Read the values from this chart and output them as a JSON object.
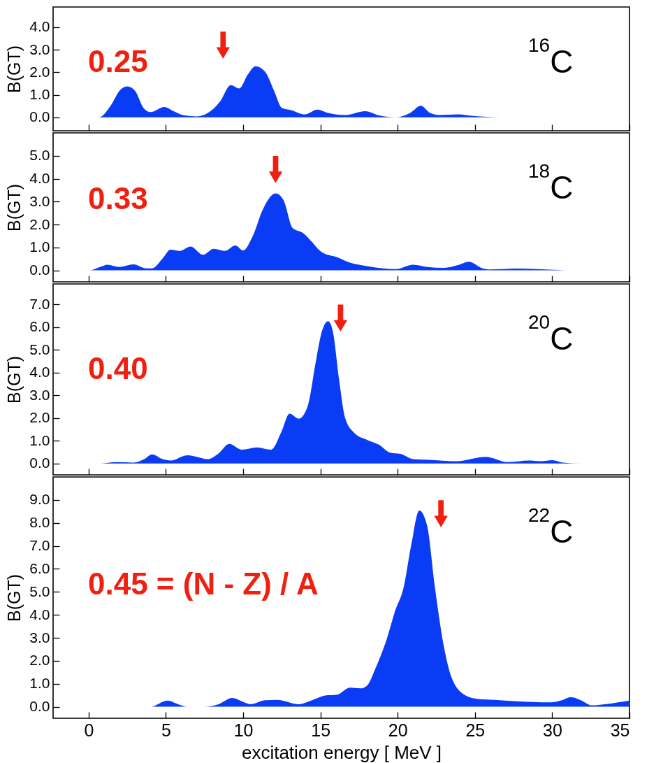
{
  "chart_data": [
    {
      "type": "area",
      "ylabel": "B(GT)",
      "tick_labels": "y",
      "x": [
        -2.3,
        0.66,
        1.5,
        2.0,
        2.5,
        3.0,
        3.55,
        4.0,
        4.9,
        5.5,
        6.2,
        7.0,
        7.8,
        8.5,
        9.2,
        9.75,
        10.3,
        10.8,
        11.4,
        12.0,
        12.5,
        13.1,
        14.0,
        14.8,
        15.5,
        16.6,
        17.9,
        18.8,
        19.9,
        20.8,
        21.5,
        22.1,
        22.7,
        23.9,
        24.9,
        26.6,
        35
      ],
      "series": [
        {
          "color": "#0a3cf5",
          "values": [
            0,
            0,
            0.6,
            1.18,
            1.37,
            1.18,
            0.42,
            0.23,
            0.46,
            0.27,
            0.08,
            0.04,
            0.23,
            0.7,
            1.43,
            1.28,
            1.9,
            2.27,
            2.04,
            1.18,
            0.42,
            0.32,
            0.13,
            0.34,
            0.19,
            0.1,
            0.27,
            0.08,
            0,
            0.19,
            0.51,
            0.19,
            0.1,
            0.13,
            0.06,
            0,
            0
          ]
        },
        {
          "type": "scatter",
          "color": "#f02010",
          "x": [
            8.7
          ],
          "values": [
            3.2
          ]
        }
      ],
      "xlim": [
        -2.3,
        35
      ],
      "xticks": [
        0,
        5,
        10,
        15,
        20,
        25,
        30,
        35
      ],
      "ylim": [
        -0.6,
        4.9
      ],
      "yticks": [
        {
          "value": 0,
          "label": "0.0"
        },
        {
          "value": 1,
          "label": "1.0"
        },
        {
          "value": 2,
          "label": "2.0"
        },
        {
          "value": 3,
          "label": "3.0"
        },
        {
          "value": 4,
          "label": "4.0"
        }
      ],
      "annotations": [
        "0.25",
        "$^{16}$C"
      ]
    },
    {
      "type": "area",
      "ylabel": "B(GT)",
      "tick_labels": "y",
      "x": [
        -2.3,
        0,
        0.9,
        1.2,
        2.0,
        2.9,
        3.7,
        4.1,
        4.8,
        5.3,
        5.9,
        6.6,
        7.4,
        8.1,
        8.8,
        9.5,
        10.0,
        10.6,
        11.3,
        12.1,
        12.6,
        13.2,
        13.9,
        14.4,
        15.1,
        16.1,
        16.9,
        18.0,
        19.9,
        21.0,
        21.9,
        23.0,
        23.9,
        24.6,
        25.5,
        26.0,
        27.7,
        30.4,
        31.2,
        35
      ],
      "series": [
        {
          "color": "#0a3cf5",
          "values": [
            0,
            0,
            0.19,
            0.25,
            0.15,
            0.26,
            0.09,
            0.09,
            0.53,
            0.9,
            0.85,
            1.04,
            0.68,
            0.94,
            0.85,
            1.09,
            0.87,
            1.47,
            2.7,
            3.36,
            3.08,
            1.85,
            1.62,
            1.28,
            0.79,
            0.57,
            0.34,
            0.19,
            0.06,
            0.25,
            0.15,
            0.11,
            0.23,
            0.38,
            0.09,
            0.04,
            0.08,
            0.02,
            0,
            0
          ]
        },
        {
          "type": "scatter",
          "color": "#f02010",
          "x": [
            12.1
          ],
          "values": [
            4.4
          ]
        }
      ],
      "xlim": [
        -2.3,
        35
      ],
      "xticks": [
        0,
        5,
        10,
        15,
        20,
        25,
        30,
        35
      ],
      "ylim": [
        -0.5,
        6.0
      ],
      "yticks": [
        {
          "value": 0,
          "label": "0.0"
        },
        {
          "value": 1,
          "label": "1.0"
        },
        {
          "value": 2,
          "label": "2.0"
        },
        {
          "value": 3,
          "label": "3.0"
        },
        {
          "value": 4,
          "label": "4.0"
        },
        {
          "value": 5,
          "label": "5.0"
        }
      ],
      "annotations": [
        "0.33",
        "$^{18}$C"
      ]
    },
    {
      "type": "area",
      "ylabel": "B(GT)",
      "tick_labels": "y",
      "x": [
        -2.3,
        0.7,
        1.8,
        2.9,
        3.6,
        4.1,
        4.8,
        5.3,
        6.4,
        7.0,
        7.7,
        8.4,
        9.1,
        9.9,
        10.9,
        11.8,
        12.5,
        13.0,
        13.6,
        14.2,
        14.7,
        15.1,
        15.5,
        15.8,
        16.2,
        16.6,
        17.2,
        18.0,
        18.8,
        19.5,
        20.2,
        21.0,
        22.4,
        23.8,
        25.7,
        27.1,
        28.5,
        29.3,
        30.0,
        30.7,
        31.8,
        35
      ],
      "series": [
        {
          "color": "#0a3cf5",
          "values": [
            0,
            0,
            0.06,
            0.04,
            0.19,
            0.4,
            0.19,
            0.13,
            0.36,
            0.29,
            0.19,
            0.44,
            0.86,
            0.61,
            0.71,
            0.61,
            1.43,
            2.19,
            1.97,
            2.58,
            4.48,
            5.82,
            6.26,
            5.82,
            3.72,
            2.0,
            1.34,
            1.05,
            0.82,
            0.48,
            0.42,
            0.19,
            0.15,
            0.1,
            0.29,
            0.06,
            0.13,
            0.1,
            0.15,
            0.04,
            0,
            0
          ]
        },
        {
          "type": "scatter",
          "color": "#f02010",
          "x": [
            16.3
          ],
          "values": [
            6.4
          ]
        }
      ],
      "xlim": [
        -2.3,
        35
      ],
      "xticks": [
        0,
        5,
        10,
        15,
        20,
        25,
        30,
        35
      ],
      "ylim": [
        -0.5,
        7.9
      ],
      "yticks": [
        {
          "value": 0,
          "label": "0.0"
        },
        {
          "value": 1,
          "label": "1.0"
        },
        {
          "value": 2,
          "label": "2.0"
        },
        {
          "value": 3,
          "label": "3.0"
        },
        {
          "value": 4,
          "label": "4.0"
        },
        {
          "value": 5,
          "label": "5.0"
        },
        {
          "value": 6,
          "label": "6.0"
        },
        {
          "value": 7,
          "label": "7.0"
        }
      ],
      "annotations": [
        "0.40",
        "$^{20}$C"
      ]
    },
    {
      "type": "area",
      "ylabel": "B(GT)",
      "xlabel": "excitation energy  [ MeV ]",
      "x": [
        -2.3,
        4.0,
        5.1,
        5.8,
        6.4,
        7.5,
        8.4,
        9.3,
        10.0,
        10.5,
        11.4,
        12.2,
        13.6,
        14.4,
        15.3,
        16.1,
        16.9,
        17.6,
        18.0,
        18.6,
        19.3,
        19.8,
        20.4,
        20.9,
        21.4,
        21.9,
        22.4,
        23.0,
        23.5,
        24.4,
        25.2,
        26.3,
        27.9,
        29.9,
        30.7,
        31.2,
        31.8,
        32.6,
        33.4,
        35
      ],
      "series": [
        {
          "color": "#0a3cf5",
          "values": [
            0,
            0,
            0.27,
            0.11,
            0,
            0,
            0.11,
            0.38,
            0.21,
            0.11,
            0.28,
            0.3,
            0.11,
            0.27,
            0.49,
            0.53,
            0.83,
            0.8,
            0.91,
            1.73,
            2.96,
            4.1,
            5.24,
            7.13,
            8.54,
            7.89,
            5.24,
            2.58,
            1.25,
            0.49,
            0.34,
            0.3,
            0.23,
            0.19,
            0.3,
            0.42,
            0.3,
            0.06,
            0.11,
            0.27
          ]
        },
        {
          "type": "scatter",
          "color": "#f02010",
          "x": [
            22.8
          ],
          "values": [
            8.4
          ]
        }
      ],
      "xlim": [
        -2.3,
        35
      ],
      "xticks": [
        0,
        5,
        10,
        15,
        20,
        25,
        30,
        35
      ],
      "ylim": [
        -0.5,
        10.0
      ],
      "yticks": [
        {
          "value": 0,
          "label": "0.0"
        },
        {
          "value": 1,
          "label": "1.0"
        },
        {
          "value": 2,
          "label": "2.0"
        },
        {
          "value": 3,
          "label": "3.0"
        },
        {
          "value": 4,
          "label": "4.0"
        },
        {
          "value": 5,
          "label": "5.0"
        },
        {
          "value": 6,
          "label": "6.0"
        },
        {
          "value": 7,
          "label": "7.0"
        },
        {
          "value": 8,
          "label": "8.0"
        },
        {
          "value": 9,
          "label": "9.0"
        }
      ],
      "annotations": [
        "0.45 = (N - Z) / A",
        "$^{22}$C"
      ]
    }
  ]
}
